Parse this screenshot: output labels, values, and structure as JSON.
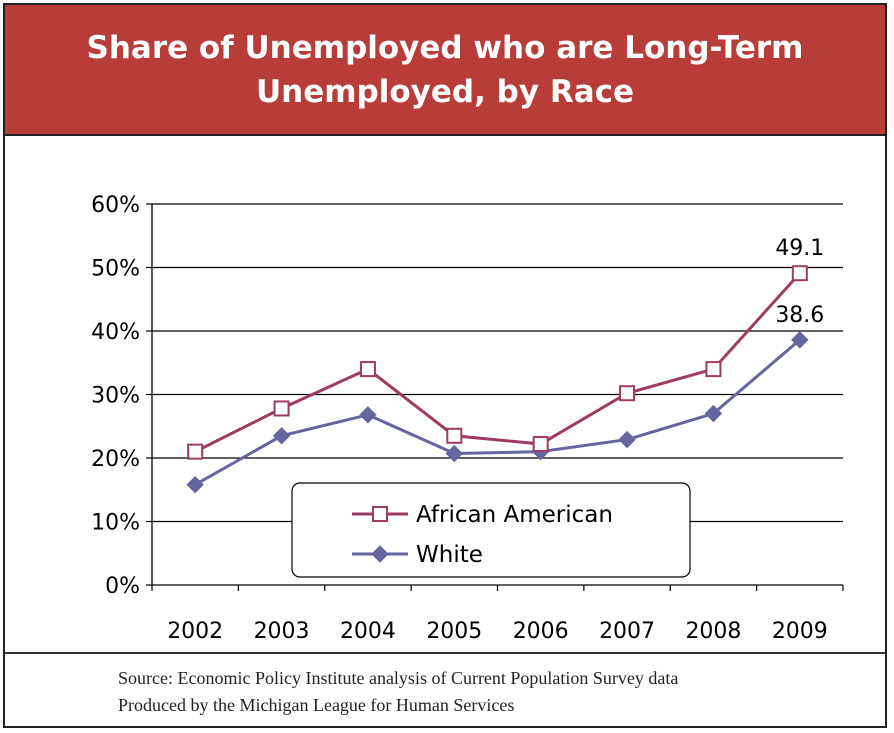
{
  "chart_data": {
    "type": "line",
    "title": "Share of Unemployed who are Long-Term Unemployed, by Race",
    "categories": [
      "2002",
      "2003",
      "2004",
      "2005",
      "2006",
      "2007",
      "2008",
      "2009"
    ],
    "y_ticks": [
      "0%",
      "10%",
      "20%",
      "30%",
      "40%",
      "50%",
      "60%"
    ],
    "ylim": [
      0,
      60
    ],
    "grid": true,
    "legend_position": "bottom-center",
    "series": [
      {
        "name": "African American",
        "values": [
          21.0,
          27.8,
          34.0,
          23.5,
          22.2,
          30.2,
          34.0,
          49.1
        ],
        "color": "#9e3a63",
        "marker": "open-square",
        "end_label": "49.1"
      },
      {
        "name": "White",
        "values": [
          15.8,
          23.5,
          26.8,
          20.7,
          21.0,
          22.9,
          27.0,
          38.6
        ],
        "color": "#6565a0",
        "marker": "filled-diamond",
        "end_label": "38.6"
      }
    ]
  },
  "source": {
    "line1": "Source: Economic Policy Institute analysis of Current Population Survey data",
    "line2": "Produced by the Michigan League for Human Services"
  }
}
